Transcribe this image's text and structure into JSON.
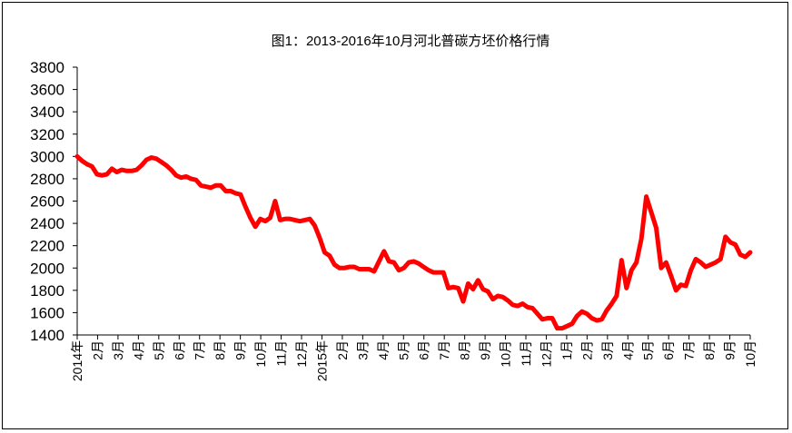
{
  "chart_data": {
    "type": "line",
    "title": "图1：2013-2016年10月河北普碳方坯价格行情",
    "xlabel": "",
    "ylabel": "",
    "ylim": [
      1400,
      3800
    ],
    "yticks": [
      "3800",
      "3600",
      "3400",
      "3200",
      "3000",
      "2800",
      "2600",
      "2400",
      "2200",
      "2000",
      "1800",
      "1600",
      "1400"
    ],
    "xticks": [
      "2014年",
      "2月",
      "3月",
      "4月",
      "5月",
      "6月",
      "7月",
      "8月",
      "9月",
      "10月",
      "11月",
      "12月",
      "2015年",
      "2月",
      "3月",
      "4月",
      "5月",
      "6月",
      "7月",
      "8月",
      "9月",
      "10月",
      "11月",
      "12月",
      "1月",
      "2月",
      "3月",
      "4月",
      "5月",
      "6月",
      "7月",
      "8月",
      "9月",
      "10月"
    ],
    "grid": false,
    "legend": "none",
    "series_color": "#ff0000",
    "series": [
      {
        "values": [
          3000,
          2960,
          2930,
          2910,
          2840,
          2830,
          2840,
          2890,
          2860,
          2880,
          2870,
          2870,
          2880,
          2920,
          2970,
          2990,
          2980,
          2950,
          2920,
          2880,
          2830,
          2810,
          2820,
          2800,
          2790,
          2740,
          2730,
          2720,
          2740,
          2740,
          2690,
          2690,
          2670,
          2660,
          2550,
          2450,
          2370,
          2440,
          2420,
          2450,
          2600,
          2430,
          2440,
          2440,
          2430,
          2420,
          2430,
          2440,
          2380,
          2270,
          2140,
          2110,
          2030,
          2000,
          2000,
          2010,
          2010,
          1990,
          1990,
          1990,
          1970,
          2060,
          2150,
          2060,
          2050,
          1980,
          2000,
          2050,
          2060,
          2040,
          2010,
          1980,
          1960,
          1960,
          1960,
          1820,
          1830,
          1820,
          1700,
          1860,
          1810,
          1890,
          1810,
          1790,
          1720,
          1750,
          1740,
          1710,
          1670,
          1660,
          1680,
          1650,
          1640,
          1590,
          1540,
          1550,
          1550,
          1460,
          1460,
          1480,
          1500,
          1570,
          1610,
          1590,
          1550,
          1530,
          1540,
          1620,
          1680,
          1750,
          2070,
          1820,
          1980,
          2050,
          2260,
          2640,
          2500,
          2360,
          2000,
          2050,
          1930,
          1800,
          1850,
          1840,
          1980,
          2080,
          2050,
          2010,
          2030,
          2050,
          2080,
          2280,
          2230,
          2210,
          2120,
          2100,
          2140
        ]
      }
    ]
  }
}
